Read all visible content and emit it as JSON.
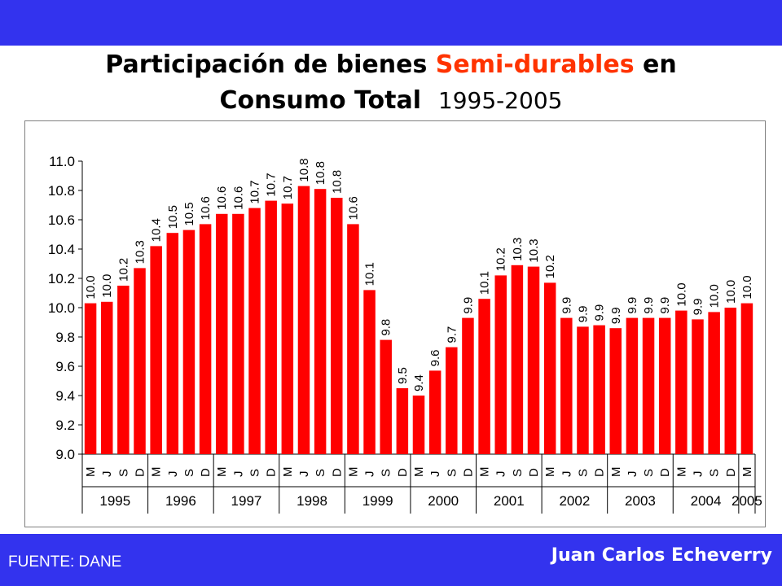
{
  "header": {
    "title_part1": "Participación de bienes ",
    "title_highlight": "Semi-durables",
    "title_part2": " en",
    "title_line2": "Consumo Total",
    "title_years": "1995-2005"
  },
  "footer": {
    "source": "FUENTE: DANE",
    "author": "Juan Carlos Echeverry"
  },
  "colors": {
    "band": "#3333ee",
    "bar": "#ff0000",
    "highlight": "#ff3300"
  },
  "chart_data": {
    "type": "bar",
    "title": "Participación de bienes Semi-durables en Consumo Total 1995-2005",
    "ylim": [
      9.0,
      11.0
    ],
    "yticks": [
      "9.0",
      "9.2",
      "9.4",
      "9.6",
      "9.8",
      "10.0",
      "10.2",
      "10.4",
      "10.6",
      "10.8",
      "11.0"
    ],
    "grid": false,
    "categories": [
      "M",
      "J",
      "S",
      "D",
      "M",
      "J",
      "S",
      "D",
      "M",
      "J",
      "S",
      "D",
      "M",
      "J",
      "S",
      "D",
      "M",
      "J",
      "S",
      "D",
      "M",
      "J",
      "S",
      "D",
      "M",
      "J",
      "S",
      "D",
      "M",
      "J",
      "S",
      "D",
      "M",
      "J",
      "S",
      "D",
      "M",
      "J",
      "S",
      "D",
      "M"
    ],
    "years": [
      {
        "label": "1995",
        "count": 4
      },
      {
        "label": "1996",
        "count": 4
      },
      {
        "label": "1997",
        "count": 4
      },
      {
        "label": "1998",
        "count": 4
      },
      {
        "label": "1999",
        "count": 4
      },
      {
        "label": "2000",
        "count": 4
      },
      {
        "label": "2001",
        "count": 4
      },
      {
        "label": "2002",
        "count": 4
      },
      {
        "label": "2003",
        "count": 4
      },
      {
        "label": "2004",
        "count": 4
      },
      {
        "label": "2005",
        "count": 1
      }
    ],
    "values": [
      10.03,
      10.04,
      10.15,
      10.27,
      10.42,
      10.51,
      10.53,
      10.57,
      10.64,
      10.64,
      10.68,
      10.73,
      10.71,
      10.83,
      10.81,
      10.75,
      10.57,
      10.12,
      9.78,
      9.45,
      9.4,
      9.57,
      9.73,
      9.93,
      10.06,
      10.22,
      10.29,
      10.28,
      10.17,
      9.93,
      9.87,
      9.88,
      9.86,
      9.93,
      9.93,
      9.93,
      9.98,
      9.92,
      9.97,
      10.0,
      10.03
    ],
    "labels": [
      "10.0",
      "10.0",
      "10.2",
      "10.3",
      "10.4",
      "10.5",
      "10.5",
      "10.6",
      "10.6",
      "10.6",
      "10.7",
      "10.7",
      "10.7",
      "10.8",
      "10.8",
      "10.8",
      "10.6",
      "10.1",
      "9.8",
      "9.5",
      "9.4",
      "9.6",
      "9.7",
      "9.9",
      "10.1",
      "10.2",
      "10.3",
      "10.3",
      "10.2",
      "9.9",
      "9.9",
      "9.9",
      "9.9",
      "9.9",
      "9.9",
      "9.9",
      "10.0",
      "9.9",
      "10.0",
      "10.0",
      "10.0"
    ]
  }
}
